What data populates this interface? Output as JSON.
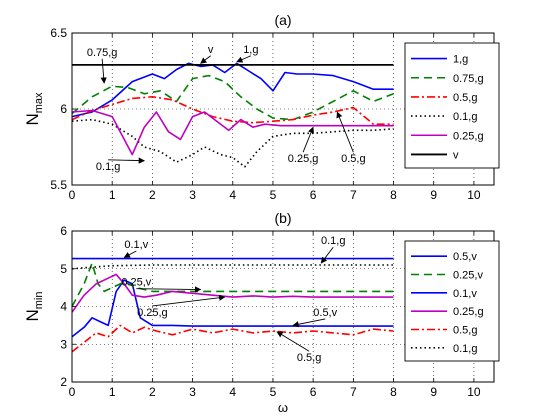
{
  "chart_data": [
    {
      "type": "line",
      "title": "(a)",
      "xlabel": "",
      "ylabel": "N",
      "ylabel_sub": "max",
      "xlim": [
        0,
        10.5
      ],
      "ylim": [
        5.5,
        6.5
      ],
      "xticks": [
        "0",
        "1",
        "2",
        "3",
        "4",
        "5",
        "6",
        "7",
        "8",
        "9",
        "10"
      ],
      "yticks": [
        "5.5",
        "6",
        "6.5"
      ],
      "grid": true,
      "legend_position": "right-outside-top",
      "series": [
        {
          "name": "1,g",
          "color": "#0000ff",
          "dash": "solid",
          "x": [
            0,
            0.5,
            1,
            1.5,
            2,
            2.3,
            2.6,
            2.9,
            3.2,
            3.5,
            3.8,
            4.1,
            4.4,
            4.7,
            5,
            5.3,
            5.6,
            6,
            6.5,
            7,
            7.5,
            8
          ],
          "y": [
            5.95,
            5.98,
            6.06,
            6.18,
            6.23,
            6.2,
            6.26,
            6.3,
            6.28,
            6.29,
            6.24,
            6.3,
            6.25,
            6.2,
            6.12,
            6.24,
            6.23,
            6.23,
            6.22,
            6.18,
            6.13,
            6.13
          ]
        },
        {
          "name": "0.75,g",
          "color": "#008000",
          "dash": "8,5",
          "x": [
            0,
            0.5,
            1,
            1.4,
            1.8,
            2.2,
            2.6,
            3,
            3.4,
            3.8,
            4.2,
            4.6,
            5,
            5.5,
            6,
            6.5,
            7,
            7.5,
            8
          ],
          "y": [
            5.97,
            6.08,
            6.15,
            6.14,
            6.1,
            6.12,
            6.05,
            6.2,
            6.22,
            6.18,
            6.08,
            6.0,
            5.94,
            5.93,
            5.98,
            6.05,
            6.12,
            6.05,
            6.1
          ]
        },
        {
          "name": "0.5,g",
          "color": "#ff0000",
          "dash": "8,3,2,3",
          "x": [
            0,
            0.5,
            1,
            1.5,
            2,
            2.5,
            3,
            3.5,
            4,
            4.5,
            5,
            5.5,
            6,
            6.5,
            7,
            7.5,
            8
          ],
          "y": [
            5.93,
            5.99,
            6.03,
            6.07,
            6.08,
            6.06,
            6.0,
            5.95,
            5.92,
            5.91,
            5.92,
            5.93,
            5.96,
            5.98,
            6.01,
            5.9,
            5.9
          ]
        },
        {
          "name": "0.1,g",
          "color": "#000000",
          "dash": "1.5,3",
          "x": [
            0,
            0.5,
            1,
            1.5,
            1.8,
            2.2,
            2.6,
            3,
            3.3,
            3.7,
            4,
            4.3,
            4.6,
            5,
            5.5,
            6,
            6.5,
            7,
            7.5,
            8
          ],
          "y": [
            5.92,
            5.93,
            5.9,
            5.82,
            5.75,
            5.72,
            5.65,
            5.7,
            5.75,
            5.7,
            5.68,
            5.62,
            5.72,
            5.82,
            5.84,
            5.84,
            5.85,
            5.86,
            5.86,
            5.87
          ]
        },
        {
          "name": "0.25,g",
          "color": "#c000c0",
          "dash": "solid",
          "x": [
            0,
            0.5,
            1,
            1.3,
            1.5,
            1.8,
            2.1,
            2.4,
            2.7,
            3,
            3.3,
            3.6,
            3.9,
            4.2,
            4.5,
            4.8,
            5.2,
            5.6,
            6,
            6.5,
            7,
            7.5,
            8
          ],
          "y": [
            5.98,
            5.99,
            5.95,
            5.8,
            5.7,
            5.88,
            5.98,
            5.85,
            5.8,
            5.95,
            5.98,
            5.92,
            5.86,
            5.93,
            5.88,
            5.9,
            5.89,
            5.89,
            5.89,
            5.89,
            5.89,
            5.89,
            5.89
          ]
        },
        {
          "name": "v",
          "color": "#000000",
          "dash": "solid",
          "width": 1.8,
          "x": [
            0,
            8
          ],
          "y": [
            6.29,
            6.29
          ]
        }
      ],
      "annotations": [
        {
          "text": "0.75,g",
          "x": 0.75,
          "y": 6.35,
          "ax": 0.8,
          "ay": 6.17
        },
        {
          "text": "v",
          "x": 3.45,
          "y": 6.37,
          "ax": 3.2,
          "ay": 6.3
        },
        {
          "text": "1,g",
          "x": 4.45,
          "y": 6.37,
          "ax": 4.1,
          "ay": 6.31
        },
        {
          "text": "0.1,g",
          "x": 0.9,
          "y": 5.6,
          "ax": 1.8,
          "ay": 5.66
        },
        {
          "text": "0.25,g",
          "x": 5.75,
          "y": 5.65,
          "ax": 6.0,
          "ay": 5.88
        },
        {
          "text": "0.5,g",
          "x": 7.0,
          "y": 5.65,
          "ax": 6.6,
          "ay": 5.98
        }
      ]
    },
    {
      "type": "line",
      "title": "(b)",
      "xlabel": "ω",
      "ylabel": "N",
      "ylabel_sub": "min",
      "xlim": [
        0,
        10.5
      ],
      "ylim": [
        2,
        6
      ],
      "xticks": [
        "0",
        "1",
        "2",
        "3",
        "4",
        "5",
        "6",
        "7",
        "8",
        "9",
        "10"
      ],
      "yticks": [
        "2",
        "3",
        "4",
        "5",
        "6"
      ],
      "grid": true,
      "legend_position": "right-outside-top",
      "series": [
        {
          "name": "0.5,v",
          "color": "#0000ff",
          "dash": "solid",
          "x": [
            0,
            0.3,
            0.5,
            0.7,
            0.9,
            1.1,
            1.3,
            1.5,
            1.7,
            2.0,
            2.5,
            3,
            4,
            5,
            6,
            7,
            8
          ],
          "y": [
            3.2,
            3.45,
            3.7,
            3.6,
            3.5,
            4.4,
            4.7,
            4.6,
            3.7,
            3.5,
            3.5,
            3.48,
            3.48,
            3.48,
            3.48,
            3.48,
            3.48
          ]
        },
        {
          "name": "0.25,v",
          "color": "#008000",
          "dash": "8,5",
          "x": [
            0,
            0.3,
            0.5,
            0.65,
            0.8,
            1,
            1.3,
            1.6,
            2,
            2.5,
            3,
            4,
            5,
            6,
            7,
            8
          ],
          "y": [
            4.0,
            4.6,
            5.15,
            4.6,
            4.4,
            4.5,
            4.65,
            4.5,
            4.4,
            4.4,
            4.4,
            4.4,
            4.4,
            4.4,
            4.4,
            4.4
          ]
        },
        {
          "name": "0.1,v",
          "color": "#0000ff",
          "dash": "solid",
          "x": [
            0,
            8
          ],
          "y": [
            5.27,
            5.27
          ]
        },
        {
          "name": "0.25,g",
          "color": "#c000c0",
          "dash": "solid",
          "x": [
            0,
            0.3,
            0.6,
            0.9,
            1.1,
            1.3,
            1.5,
            1.8,
            2.1,
            2.5,
            3,
            3.5,
            4,
            4.5,
            5,
            5.5,
            6,
            6.5,
            7,
            7.5,
            8
          ],
          "y": [
            3.85,
            4.3,
            4.6,
            4.75,
            4.85,
            4.6,
            4.3,
            4.25,
            4.3,
            4.4,
            4.35,
            4.3,
            4.25,
            4.28,
            4.25,
            4.27,
            4.25,
            4.25,
            4.25,
            4.25,
            4.25
          ]
        },
        {
          "name": "0.5,g",
          "color": "#ff0000",
          "dash": "8,3,2,3",
          "x": [
            0,
            0.3,
            0.6,
            0.9,
            1.2,
            1.5,
            1.8,
            2.1,
            2.5,
            3,
            3.5,
            4,
            4.5,
            5,
            5.5,
            6,
            6.5,
            7,
            7.5,
            8
          ],
          "y": [
            2.8,
            3.05,
            3.3,
            3.2,
            3.5,
            3.3,
            3.45,
            3.35,
            3.25,
            3.4,
            3.3,
            3.4,
            3.3,
            3.35,
            3.3,
            3.35,
            3.3,
            3.25,
            3.4,
            3.35
          ]
        },
        {
          "name": "0.1,g",
          "color": "#000000",
          "dash": "1.5,3",
          "x": [
            0,
            0.5,
            1,
            2,
            3,
            4,
            5,
            6,
            7,
            8
          ],
          "y": [
            5.0,
            5.04,
            5.08,
            5.1,
            5.1,
            5.1,
            5.1,
            5.1,
            5.1,
            5.1
          ]
        }
      ],
      "annotations": [
        {
          "text": "0.1,v",
          "x": 1.6,
          "y": 5.55,
          "ax": 1.3,
          "ay": 5.3
        },
        {
          "text": "0.1,g",
          "x": 6.5,
          "y": 5.65,
          "ax": 6.2,
          "ay": 5.15
        },
        {
          "text": "0.25,v",
          "x": 1.6,
          "y": 4.55,
          "ax": 3.2,
          "ay": 4.45
        },
        {
          "text": "0.25,g",
          "x": 2.0,
          "y": 3.75,
          "ax": 3.8,
          "ay": 4.25
        },
        {
          "text": "0.5,v",
          "x": 6.3,
          "y": 3.75,
          "ax": 5.5,
          "ay": 3.5
        },
        {
          "text": "0.5,g",
          "x": 5.9,
          "y": 2.55,
          "ax": 5.1,
          "ay": 3.33
        }
      ]
    }
  ]
}
